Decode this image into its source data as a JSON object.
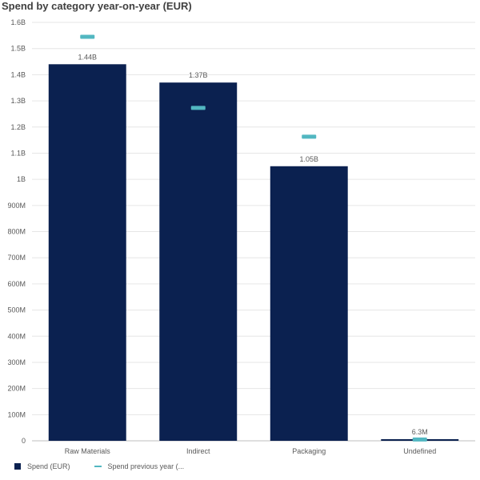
{
  "chart_data": {
    "type": "bar",
    "title": "Spend by category year-on-year (EUR)",
    "categories": [
      "Raw Materials",
      "Indirect",
      "Packaging",
      "Undefined"
    ],
    "series": [
      {
        "name": "Spend (EUR)",
        "kind": "bar",
        "values": [
          1440000000,
          1370000000,
          1050000000,
          6300000
        ],
        "data_labels": [
          "1.44B",
          "1.37B",
          "1.05B",
          "6.3M"
        ],
        "color": "#0b2150"
      },
      {
        "name": "Spend previous year (...",
        "kind": "marker",
        "values": [
          1545000000,
          1273000000,
          1163000000,
          5000000
        ],
        "color": "#52b7c1"
      }
    ],
    "ylim": [
      0,
      1600000000
    ],
    "yticks": [
      {
        "value": 0,
        "label": "0"
      },
      {
        "value": 100000000,
        "label": "100M"
      },
      {
        "value": 200000000,
        "label": "200M"
      },
      {
        "value": 300000000,
        "label": "300M"
      },
      {
        "value": 400000000,
        "label": "400M"
      },
      {
        "value": 500000000,
        "label": "500M"
      },
      {
        "value": 600000000,
        "label": "600M"
      },
      {
        "value": 700000000,
        "label": "700M"
      },
      {
        "value": 800000000,
        "label": "800M"
      },
      {
        "value": 900000000,
        "label": "900M"
      },
      {
        "value": 1000000000,
        "label": "1B"
      },
      {
        "value": 1100000000,
        "label": "1.1B"
      },
      {
        "value": 1200000000,
        "label": "1.2B"
      },
      {
        "value": 1300000000,
        "label": "1.3B"
      },
      {
        "value": 1400000000,
        "label": "1.4B"
      },
      {
        "value": 1500000000,
        "label": "1.5B"
      },
      {
        "value": 1600000000,
        "label": "1.6B"
      }
    ],
    "grid": true,
    "legend_position": "bottom-left"
  }
}
